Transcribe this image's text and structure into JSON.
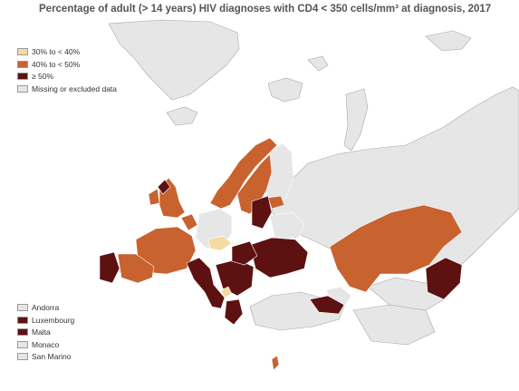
{
  "title": "Percentage of adult (> 14 years) HIV diagnoses with CD4 < 350 cells/mm³ at diagnosis, 2017",
  "colors": {
    "background": "#ffffff",
    "sea_outline": "#a8a8a8",
    "missing": "#e6e6e6",
    "band_30_40": "#f3dba2",
    "band_40_50": "#c8622e",
    "band_gt50": "#5e1111"
  },
  "legend": [
    {
      "label": "30% to < 40%",
      "color": "#f3dba2"
    },
    {
      "label": "40% to < 50%",
      "color": "#c8622e"
    },
    {
      "label": "≥ 50%",
      "color": "#5e1111"
    },
    {
      "label": "Missing or excluded data",
      "color": "#e6e6e6"
    }
  ],
  "small_countries": [
    {
      "label": "Andorra",
      "color": "#e6e6e6"
    },
    {
      "label": "Luxembourg",
      "color": "#5e1111"
    },
    {
      "label": "Malta",
      "color": "#5e1111"
    },
    {
      "label": "Monaco",
      "color": "#e6e6e6"
    },
    {
      "label": "San Marino",
      "color": "#e6e6e6"
    }
  ]
}
